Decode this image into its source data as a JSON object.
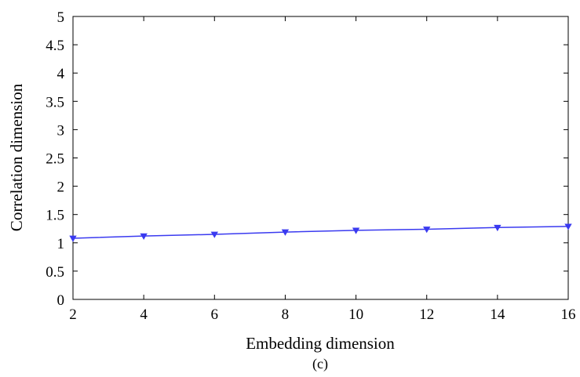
{
  "chart_data": {
    "type": "line",
    "title": "",
    "xlabel": "Embedding dimension",
    "ylabel": "Correlation dimension",
    "caption": "(c)",
    "xlim": [
      2,
      16
    ],
    "ylim": [
      0,
      5
    ],
    "xticks": [
      2,
      4,
      6,
      8,
      10,
      12,
      14,
      16
    ],
    "yticks": [
      0,
      0.5,
      1,
      1.5,
      2,
      2.5,
      3,
      3.5,
      4,
      4.5,
      5
    ],
    "grid": false,
    "legend": "none",
    "series": [
      {
        "x": [
          2,
          4,
          6,
          8,
          10,
          12,
          14,
          16
        ],
        "y": [
          1.08,
          1.12,
          1.15,
          1.19,
          1.22,
          1.24,
          1.27,
          1.29
        ],
        "color": "#3a3af0",
        "marker": "triangle-down"
      }
    ]
  }
}
